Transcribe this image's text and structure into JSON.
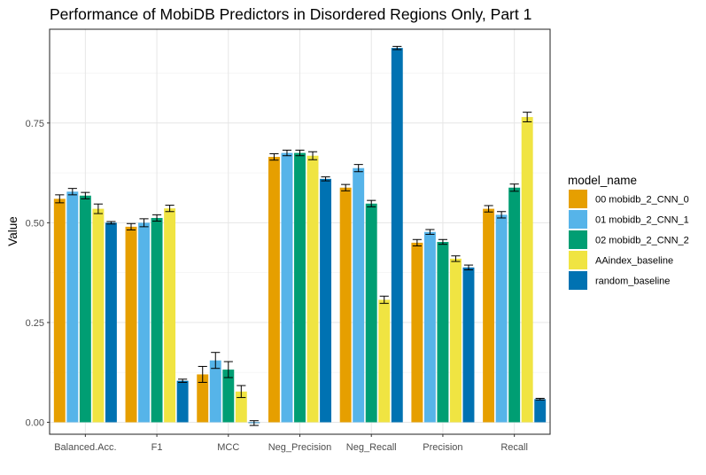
{
  "chart_data": {
    "type": "bar",
    "title": "Performance of MobiDB Predictors in Disordered Regions Only, Part 1",
    "xlabel": "",
    "ylabel": "Value",
    "ylim": [
      -0.03,
      0.985
    ],
    "yticks": [
      0.0,
      0.25,
      0.5,
      0.75
    ],
    "ytick_labels": [
      "0.00",
      "0.25",
      "0.50",
      "0.75"
    ],
    "grid": true,
    "legend_title": "model_name",
    "legend_position": "right",
    "categories": [
      "Balanced.Acc.",
      "F1",
      "MCC",
      "Neg_Precision",
      "Neg_Recall",
      "Precision",
      "Recall"
    ],
    "series": [
      {
        "name": "00 mobidb_2_CNN_0",
        "color": "#E69F00",
        "values": [
          0.56,
          0.49,
          0.12,
          0.665,
          0.588,
          0.45,
          0.535
        ],
        "errors": [
          0.01,
          0.008,
          0.02,
          0.008,
          0.008,
          0.008,
          0.008
        ]
      },
      {
        "name": "01 mobidb_2_CNN_1",
        "color": "#56B4E9",
        "values": [
          0.578,
          0.5,
          0.155,
          0.675,
          0.637,
          0.477,
          0.52
        ],
        "errors": [
          0.008,
          0.01,
          0.02,
          0.007,
          0.009,
          0.006,
          0.008
        ]
      },
      {
        "name": "02 mobidb_2_CNN_2",
        "color": "#009E73",
        "values": [
          0.568,
          0.512,
          0.132,
          0.675,
          0.548,
          0.452,
          0.588
        ],
        "errors": [
          0.008,
          0.008,
          0.02,
          0.007,
          0.008,
          0.006,
          0.009
        ]
      },
      {
        "name": "AAindex_baseline",
        "color": "#F0E442",
        "values": [
          0.535,
          0.536,
          0.077,
          0.668,
          0.307,
          0.41,
          0.765
        ],
        "errors": [
          0.012,
          0.008,
          0.015,
          0.01,
          0.009,
          0.007,
          0.012
        ]
      },
      {
        "name": "random_baseline",
        "color": "#0072B2",
        "values": [
          0.5,
          0.104,
          -0.002,
          0.61,
          0.938,
          0.388,
          0.058
        ],
        "errors": [
          0.003,
          0.004,
          0.006,
          0.005,
          0.004,
          0.006,
          0.002
        ]
      }
    ]
  }
}
